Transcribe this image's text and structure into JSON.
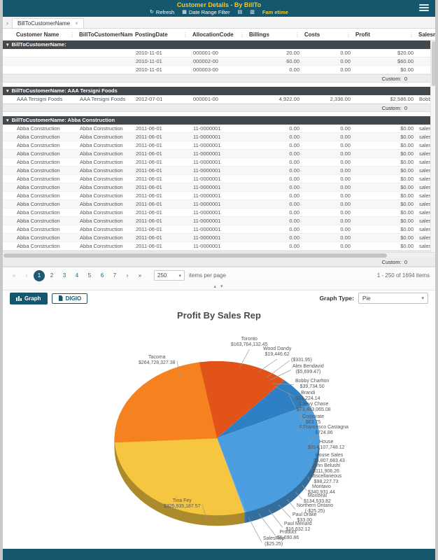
{
  "icons": {
    "refresh": "↻",
    "calendar": "▦",
    "export_excel": "▤",
    "export_pdf": "▥",
    "tab_chevron": "›",
    "close": "×",
    "column_menu": "⋮",
    "group_collapse": "▾",
    "nav_first": "«",
    "nav_prev": "‹",
    "nav_next": "›",
    "nav_last": "»",
    "caret_down": "▾",
    "splitter": "▴ ▾"
  },
  "colors": {
    "header_bar": "#15586e",
    "accent_yellow": "#f9c821",
    "group_row": "#43484d",
    "pager_current": "#1e5a73"
  },
  "header": {
    "title": "Customer Details - By BillTo",
    "toolbar": {
      "refresh": "Refresh",
      "date_filter": "Date Range Filter",
      "brand": "Fam etime"
    }
  },
  "tabs": [
    {
      "label": "BillToCustomerName"
    }
  ],
  "grid": {
    "columns": [
      {
        "label": "Customer Name",
        "align": "l",
        "width": 90
      },
      {
        "label": "BillToCustomerName",
        "align": "l",
        "width": 80
      },
      {
        "label": "PostingDate",
        "align": "l",
        "width": 82
      },
      {
        "label": "AllocationCode",
        "align": "l",
        "width": 81
      },
      {
        "label": "Billings",
        "align": "r",
        "width": 79
      },
      {
        "label": "Costs",
        "align": "r",
        "width": 73
      },
      {
        "label": "Profit",
        "align": "r",
        "width": 90
      },
      {
        "label": "SalesmanName",
        "align": "l",
        "width": 70
      }
    ],
    "groups": [
      {
        "title": "BillToCustomerName:",
        "rows": [
          [
            "",
            "",
            "2010-11-01",
            "000001-00",
            "20.00",
            "0.00",
            "$20.00",
            ""
          ],
          [
            "",
            "",
            "2010-11-01",
            "000002-00",
            "60.00",
            "0.00",
            "$60.00",
            ""
          ],
          [
            "",
            "",
            "2010-11-01",
            "000003-00",
            "0.00",
            "0.00",
            "$0.00",
            ""
          ]
        ],
        "footer_label": "Custom:",
        "footer_value": "0"
      },
      {
        "title": "BillToCustomerName: AAA Tersigni Foods",
        "rows": [
          [
            "AAA Tersigni Foods",
            "AAA Tersigni Foods",
            "2012-07-01",
            "000001-00",
            "4,922.00",
            "2,336.00",
            "$2,586.00",
            "Bobby Charlton"
          ]
        ],
        "footer_label": "Custom:",
        "footer_value": "0"
      },
      {
        "title": "BillToCustomerName: Abba Construction",
        "rows": [
          [
            "Abba Construction",
            "Abba Construction",
            "2011-06-01",
            "11-0000001",
            "0.00",
            "0.00",
            "$0.00",
            "sales misc"
          ],
          [
            "Abba Construction",
            "Abba Construction",
            "2011-06-01",
            "11-0000001",
            "0.00",
            "0.00",
            "$0.00",
            "sales misc"
          ],
          [
            "Abba Construction",
            "Abba Construction",
            "2011-06-01",
            "11-0000001",
            "0.00",
            "0.00",
            "$0.00",
            "sales misc"
          ],
          [
            "Abba Construction",
            "Abba Construction",
            "2011-06-01",
            "11-0000001",
            "0.00",
            "0.00",
            "$0.00",
            "sales misc"
          ],
          [
            "Abba Construction",
            "Abba Construction",
            "2011-06-01",
            "11-0000001",
            "0.00",
            "0.00",
            "$0.00",
            "sales misc"
          ],
          [
            "Abba Construction",
            "Abba Construction",
            "2011-06-01",
            "11-0000001",
            "0.00",
            "0.00",
            "$0.00",
            "sales misc"
          ],
          [
            "Abba Construction",
            "Abba Construction",
            "2011-06-01",
            "11-0000001",
            "0.00",
            "0.00",
            "$0.00",
            "sales misc"
          ],
          [
            "Abba Construction",
            "Abba Construction",
            "2011-06-01",
            "11-0000001",
            "0.00",
            "0.00",
            "$0.00",
            "sales misc"
          ],
          [
            "Abba Construction",
            "Abba Construction",
            "2011-06-01",
            "11-0000001",
            "0.00",
            "0.00",
            "$0.00",
            "sales misc"
          ],
          [
            "Abba Construction",
            "Abba Construction",
            "2011-06-01",
            "11-0000001",
            "0.00",
            "0.00",
            "$0.00",
            "sales misc"
          ],
          [
            "Abba Construction",
            "Abba Construction",
            "2011-06-01",
            "11-0000001",
            "0.00",
            "0.00",
            "$0.00",
            "sales misc"
          ],
          [
            "Abba Construction",
            "Abba Construction",
            "2011-06-01",
            "11-0000001",
            "0.00",
            "0.00",
            "$0.00",
            "sales misc"
          ],
          [
            "Abba Construction",
            "Abba Construction",
            "2011-06-01",
            "11-0000001",
            "0.00",
            "0.00",
            "$0.00",
            "sales misc"
          ],
          [
            "Abba Construction",
            "Abba Construction",
            "2011-06-01",
            "11-0000001",
            "0.00",
            "0.00",
            "$0.00",
            "sales misc"
          ],
          [
            "Abba Construction",
            "Abba Construction",
            "2011-06-01",
            "11-0000001",
            "0.00",
            "0.00",
            "$0.00",
            "sales misc"
          ]
        ],
        "footer_label": "Custom:",
        "footer_value": "0"
      }
    ],
    "grand_footer": {
      "label": "Custom:",
      "value": "0"
    }
  },
  "pager": {
    "pages": [
      "1",
      "2",
      "3",
      "4",
      "5",
      "6",
      "7"
    ],
    "current": "1",
    "page_size": "250",
    "items_per_page_label": "items per page",
    "range_label": "1 - 250 of 1694 items"
  },
  "chart_toolbar": {
    "graph_label": "Graph",
    "digio_label": "DIGIO",
    "graph_type_label": "Graph Type:",
    "graph_type_value": "Pie"
  },
  "chart_data": {
    "type": "pie",
    "title": "Profit By Sales Rep",
    "legend_position": "none",
    "start_angle": -10,
    "series": [
      {
        "name": "Toronto",
        "amount": 163764132.45,
        "value_label": "$163,764,132.45",
        "color": "#e2531a",
        "lx": 326,
        "ly": 44,
        "tx": 339,
        "ty": 87,
        "side": "t"
      },
      {
        "name": "Wood Dandy",
        "amount": 19446.62,
        "value_label": "$19,446.62",
        "color": "#cccccc",
        "lx": 372,
        "ly": 58,
        "tx": 366,
        "ty": 94,
        "side": "t"
      },
      {
        "name": "",
        "amount": -331.95,
        "value_label": "($331.95)",
        "color": "#cccccc",
        "lx": 412,
        "ly": 74,
        "tx": 378,
        "ty": 102,
        "side": "r"
      },
      {
        "name": "Alex Bendavid",
        "amount": -5699.47,
        "value_label": "($5,699.47)",
        "color": "#cccccc",
        "lx": 414,
        "ly": 83,
        "tx": 382,
        "ty": 106,
        "side": "r"
      },
      {
        "name": "Bobby Charlton",
        "amount": 39734.5,
        "value_label": "$39,734.50",
        "color": "#cccccc",
        "lx": 418,
        "ly": 104,
        "tx": 386,
        "ty": 111,
        "side": "r"
      },
      {
        "name": "Brandi",
        "amount": 11224.14,
        "value_label": "$11,224.14",
        "color": "#cccccc",
        "lx": 419,
        "ly": 121,
        "tx": 389,
        "ty": 115,
        "side": "r"
      },
      {
        "name": "Chevy Chase",
        "amount": 73403065.08,
        "value_label": "$73,403,065.08",
        "color": "#2f7fc4",
        "lx": 420,
        "ly": 137,
        "tx": 408,
        "ty": 124,
        "side": "r"
      },
      {
        "name": "Corporate",
        "amount": 63.75,
        "value_label": "$63.75",
        "color": "#cccccc",
        "lx": 428,
        "ly": 155,
        "tx": 428,
        "ty": 136,
        "side": "r"
      },
      {
        "name": "F.Francesco Castagna",
        "amount": 724.86,
        "value_label": "$724.86",
        "color": "#cccccc",
        "lx": 424,
        "ly": 170,
        "tx": 440,
        "ty": 149,
        "side": "r"
      },
      {
        "name": "House",
        "amount": 314107748.12,
        "value_label": "$314,107,748.12",
        "color": "#4a9ddf",
        "lx": 436,
        "ly": 191,
        "tx": 448,
        "ty": 184,
        "side": "r"
      },
      {
        "name": "House Sales",
        "amount": 3807683.43,
        "value_label": "$3,807,683.43",
        "color": "#5aa7e4",
        "lx": 444,
        "ly": 210,
        "tx": 446,
        "ty": 219,
        "side": "r"
      },
      {
        "name": "John Belushi",
        "amount": 111906.26,
        "value_label": "$111,906.26",
        "color": "#cccccc",
        "lx": 442,
        "ly": 225,
        "tx": 442,
        "ty": 232,
        "side": "r"
      },
      {
        "name": "Miscellaneous",
        "amount": 98227.73,
        "value_label": "$98,227.73",
        "color": "#cccccc",
        "lx": 440,
        "ly": 240,
        "tx": 436,
        "ty": 244,
        "side": "r"
      },
      {
        "name": "Montavo",
        "amount": 340931.44,
        "value_label": "$340,931.44",
        "color": "#cccccc",
        "lx": 436,
        "ly": 255,
        "tx": 428,
        "ty": 256,
        "side": "r"
      },
      {
        "name": "Montreal",
        "amount": 134533.82,
        "value_label": "$134,533.82",
        "color": "#cccccc",
        "lx": 430,
        "ly": 268,
        "tx": 418,
        "ty": 266,
        "side": "r"
      },
      {
        "name": "Northern Ontario",
        "amount": -25.25,
        "value_label": "(-$25.25)",
        "color": "#cccccc",
        "lx": 420,
        "ly": 282,
        "tx": 406,
        "ty": 276,
        "side": "r"
      },
      {
        "name": "Paul Drake",
        "amount": 33.0,
        "value_label": "$33.00",
        "color": "#cccccc",
        "lx": 414,
        "ly": 295,
        "tx": 394,
        "ty": 284,
        "side": "r"
      },
      {
        "name": "Paul Menard",
        "amount": 16632.12,
        "value_label": "$16,632.12",
        "color": "#cccccc",
        "lx": 402,
        "ly": 308,
        "tx": 380,
        "ty": 291,
        "side": "r"
      },
      {
        "name": "Product",
        "amount": 5690.86,
        "value_label": "$5,690.86",
        "color": "#cccccc",
        "lx": 392,
        "ly": 320,
        "tx": 366,
        "ty": 297,
        "side": "r"
      },
      {
        "name": "SalesRep",
        "amount": -25.25,
        "value_label": "($25.25)",
        "color": "#cccccc",
        "lx": 372,
        "ly": 329,
        "tx": 351,
        "ty": 302,
        "side": "r"
      },
      {
        "name": "Tina Fey",
        "amount": 325935187.57,
        "value_label": "$325,935,187.57",
        "color": "#f6c640",
        "lx": 230,
        "ly": 275,
        "tx": 291,
        "ty": 304,
        "side": "l"
      },
      {
        "name": "Tacoma",
        "amount": 264728327.38,
        "value_label": "$264,728,327.38",
        "color": "#f5821f",
        "lx": 194,
        "ly": 70,
        "tx": 254,
        "ty": 106,
        "side": "l"
      }
    ]
  }
}
